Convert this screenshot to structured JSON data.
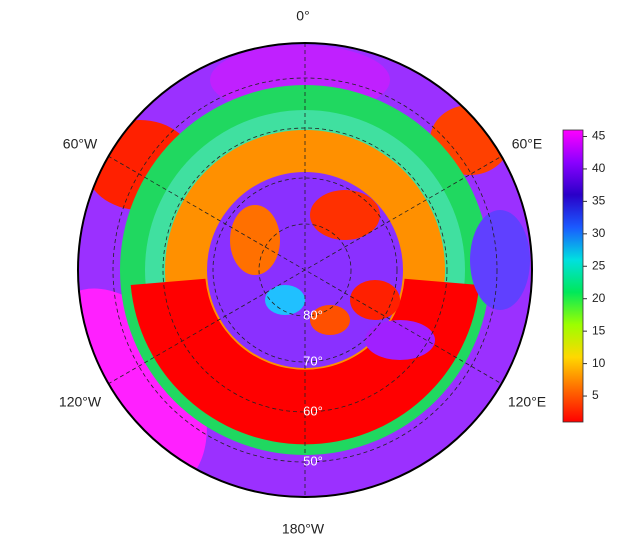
{
  "map": {
    "lon_labels": [
      "0°",
      "60°E",
      "120°E",
      "180°W",
      "120°W",
      "60°W"
    ],
    "lat_labels": [
      "80°",
      "70°",
      "60°",
      "50°"
    ],
    "colorbar": {
      "lim": [
        1,
        46
      ],
      "ticks": [
        5,
        10,
        15,
        20,
        25,
        30,
        35,
        40,
        45
      ],
      "colormap": [
        "#ff0000",
        "#ff6a00",
        "#ffd800",
        "#9cff00",
        "#00e85a",
        "#00e0e0",
        "#1a5aff",
        "#2a00c8",
        "#8a00ff",
        "#ff00ff"
      ]
    }
  }
}
